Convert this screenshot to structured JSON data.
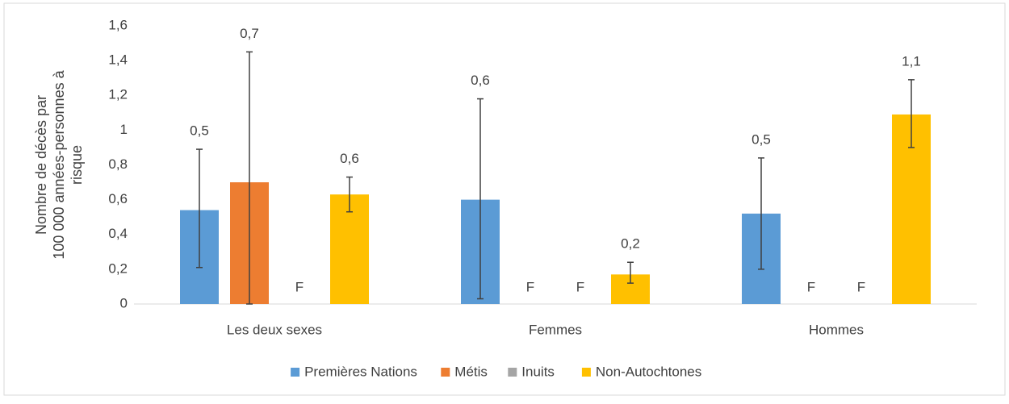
{
  "chart_data": {
    "type": "bar",
    "ylabel_lines": [
      "Nombre de décès par",
      "100 000 années-personnes à",
      "risque"
    ],
    "categories": [
      "Les deux sexes",
      "Femmes",
      "Hommes"
    ],
    "series": [
      {
        "name": "Premières Nations",
        "color": "#5b9bd5",
        "values": [
          0.54,
          0.6,
          0.52
        ],
        "value_labels": [
          "0,5",
          "0,6",
          "0,5"
        ],
        "lower": [
          0.21,
          0.03,
          0.2
        ],
        "upper": [
          0.89,
          1.18,
          0.84
        ]
      },
      {
        "name": "Métis",
        "color": "#ed7d31",
        "values": [
          0.7,
          null,
          null
        ],
        "value_labels": [
          "0,7",
          "F",
          "F"
        ],
        "lower": [
          0,
          null,
          null
        ],
        "upper": [
          1.45,
          null,
          null
        ]
      },
      {
        "name": "Inuits",
        "color": "#a5a5a5",
        "values": [
          null,
          null,
          null
        ],
        "value_labels": [
          "F",
          "F",
          "F"
        ],
        "lower": [
          null,
          null,
          null
        ],
        "upper": [
          null,
          null,
          null
        ]
      },
      {
        "name": "Non-Autochtones",
        "color": "#ffc000",
        "values": [
          0.63,
          0.17,
          1.09
        ],
        "value_labels": [
          "0,6",
          "0,2",
          "1,1"
        ],
        "lower": [
          0.53,
          0.12,
          0.9
        ],
        "upper": [
          0.73,
          0.24,
          1.29
        ]
      }
    ],
    "ylim": [
      0,
      1.6
    ],
    "yticks": [
      0,
      {
        "value": 0.2,
        "label": "0,2"
      },
      {
        "value": 0.4,
        "label": "0,4"
      },
      {
        "value": 0.6,
        "label": "0,6"
      },
      {
        "value": 0.8,
        "label": "0,8"
      },
      1,
      {
        "value": 1.2,
        "label": "1,2"
      },
      {
        "value": 1.4,
        "label": "1,4"
      },
      {
        "value": 1.6,
        "label": "1,6"
      }
    ],
    "grid": false,
    "legend": "bottom"
  }
}
